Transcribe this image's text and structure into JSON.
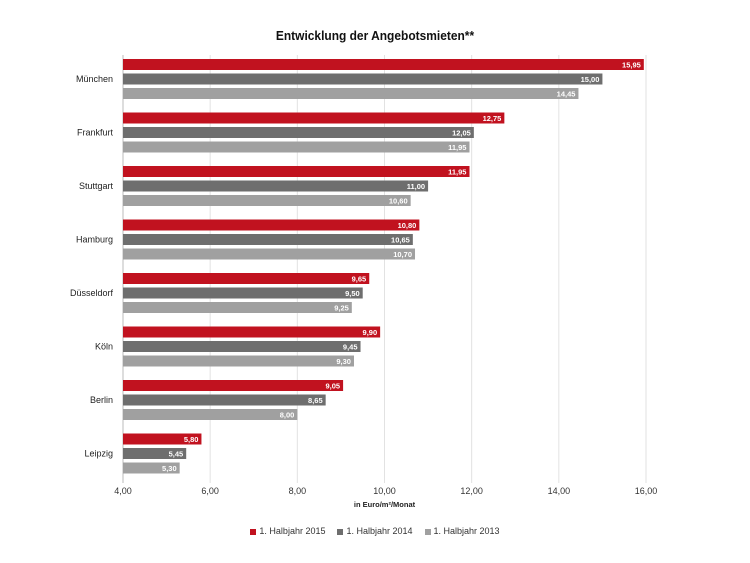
{
  "chart_data": {
    "type": "bar",
    "orientation": "horizontal",
    "title": "Entwicklung der Angebotsmieten**",
    "xlabel": "in Euro/m²/Monat",
    "ylabel": "",
    "xlim": [
      4,
      16
    ],
    "xticks": [
      "4,00",
      "6,00",
      "8,00",
      "10,00",
      "12,00",
      "14,00",
      "16,00"
    ],
    "grid": true,
    "legend_position": "bottom",
    "categories": [
      "München",
      "Frankfurt",
      "Stuttgart",
      "Hamburg",
      "Düsseldorf",
      "Köln",
      "Berlin",
      "Leipzig"
    ],
    "series": [
      {
        "name": "1. Halbjahr 2015",
        "color": "#c1121f",
        "values": [
          15.95,
          12.75,
          11.95,
          10.8,
          9.65,
          9.9,
          9.05,
          5.8
        ],
        "labels": [
          "15,95",
          "12,75",
          "11,95",
          "10,80",
          "9,65",
          "9,90",
          "9,05",
          "5,80"
        ]
      },
      {
        "name": "1. Halbjahr 2014",
        "color": "#6e6e6e",
        "values": [
          15.0,
          12.05,
          11.0,
          10.65,
          9.5,
          9.45,
          8.65,
          5.45
        ],
        "labels": [
          "15,00",
          "12,05",
          "11,00",
          "10,65",
          "9,50",
          "9,45",
          "8,65",
          "5,45"
        ]
      },
      {
        "name": "1. Halbjahr 2013",
        "color": "#a0a0a0",
        "values": [
          14.45,
          11.95,
          10.6,
          10.7,
          9.25,
          9.3,
          8.0,
          5.3
        ],
        "labels": [
          "14,45",
          "11,95",
          "10,60",
          "10,70",
          "9,25",
          "9,30",
          "8,00",
          "5,30"
        ]
      }
    ]
  }
}
